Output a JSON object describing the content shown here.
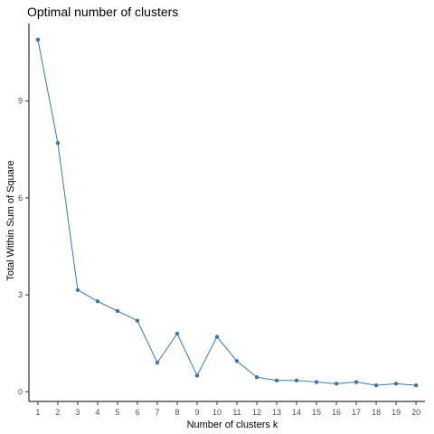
{
  "chart_data": {
    "type": "line",
    "title": "Optimal number of clusters",
    "xlabel": "Number of clusters k",
    "ylabel": "Total Within Sum of Square",
    "x": [
      1,
      2,
      3,
      4,
      5,
      6,
      7,
      8,
      9,
      10,
      11,
      12,
      13,
      14,
      15,
      16,
      17,
      18,
      19,
      20
    ],
    "x_tick_labels": [
      "1",
      "2",
      "3",
      "4",
      "5",
      "6",
      "7",
      "8",
      "9",
      "10",
      "11",
      "12",
      "13",
      "14",
      "15",
      "16",
      "17",
      "18",
      "19",
      "20"
    ],
    "series": [
      {
        "values": [
          10.9,
          7.7,
          3.15,
          2.8,
          2.5,
          2.2,
          0.9,
          1.8,
          0.5,
          1.7,
          0.95,
          0.45,
          0.35,
          0.35,
          0.3,
          0.25,
          0.3,
          0.2,
          0.25,
          0.2
        ],
        "color": "#3a76ab"
      }
    ],
    "y_ticks": [
      0,
      3,
      6,
      9
    ],
    "y_tick_labels": [
      "0",
      "3",
      "6",
      "9"
    ],
    "ylim": [
      -0.3,
      11.4
    ],
    "xlim": [
      0.55,
      20.45
    ],
    "grid": false,
    "legend": "none"
  }
}
